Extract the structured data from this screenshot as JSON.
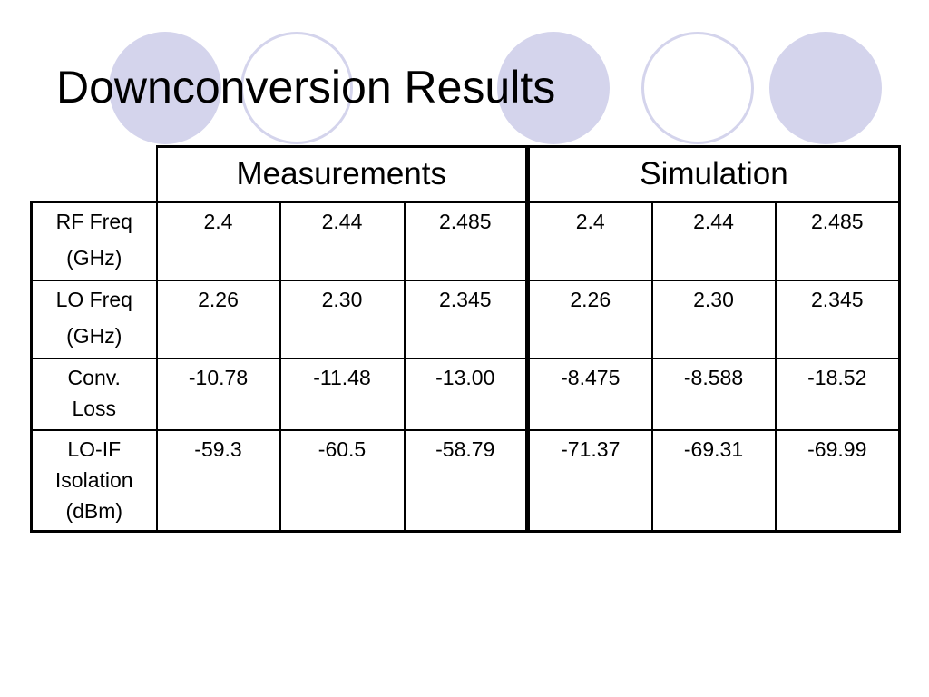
{
  "slide": {
    "title": "Downconversion Results"
  },
  "decoration": {
    "circle_fill": "#d4d4ec"
  },
  "table": {
    "group_headers": [
      "Measurements",
      "Simulation"
    ],
    "rows": [
      {
        "label": "RF Freq\n(GHz)",
        "measurements": [
          "2.4",
          "2.44",
          "2.485"
        ],
        "simulation": [
          "2.4",
          "2.44",
          "2.485"
        ]
      },
      {
        "label": "LO Freq\n(GHz)",
        "measurements": [
          "2.26",
          "2.30",
          "2.345"
        ],
        "simulation": [
          "2.26",
          "2.30",
          "2.345"
        ]
      },
      {
        "label": "Conv.\nLoss",
        "measurements": [
          "-10.78",
          "-11.48",
          "-13.00"
        ],
        "simulation": [
          "-8.475",
          "-8.588",
          "-18.52"
        ]
      },
      {
        "label": "LO-IF\nIsolation\n(dBm)",
        "measurements": [
          "-59.3",
          "-60.5",
          "-58.79"
        ],
        "simulation": [
          "-71.37",
          "-69.31",
          "-69.99"
        ]
      }
    ]
  }
}
